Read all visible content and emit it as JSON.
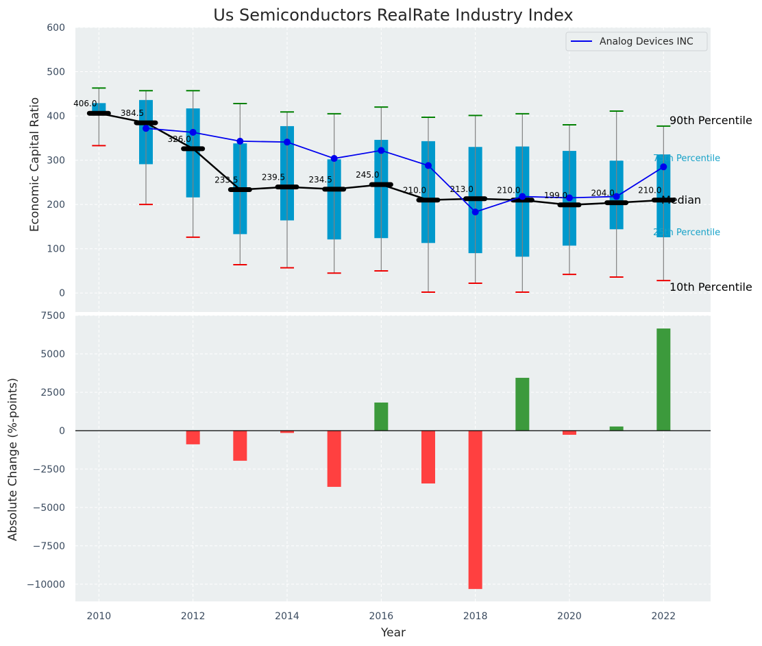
{
  "chart_data": [
    {
      "type": "box",
      "title": "Us Semiconductors RealRate Industry Index",
      "xlabel": "",
      "ylabel": "Economic Capital Ratio",
      "ylim": [
        -43,
        600
      ],
      "yticks": [
        0,
        100,
        200,
        300,
        400,
        500,
        600
      ],
      "grid": true,
      "legend": {
        "position": "top-right",
        "entries": [
          {
            "label": "Analog Devices INC",
            "color": "#0000ee"
          }
        ]
      },
      "x": [
        2010,
        2011,
        2012,
        2013,
        2014,
        2015,
        2016,
        2017,
        2018,
        2019,
        2020,
        2021,
        2022
      ],
      "p90": [
        463,
        457,
        457,
        428,
        409,
        405,
        420,
        397,
        401,
        405,
        380,
        411,
        377
      ],
      "q3": [
        429,
        436,
        417,
        338,
        377,
        302,
        346,
        343,
        330,
        331,
        321,
        299,
        313
      ],
      "median": [
        406.0,
        384.5,
        326.0,
        233.5,
        239.5,
        234.5,
        245.0,
        210.0,
        213.0,
        210.0,
        199.0,
        204.0,
        210.0
      ],
      "median_labels": [
        "406.0",
        "384.5",
        "326.0",
        "233.5",
        "239.5",
        "234.5",
        "245.0",
        "210.0",
        "213.0",
        "210.0",
        "199.0",
        "204.0",
        "210.0"
      ],
      "q1": [
        401,
        291,
        216,
        133,
        164,
        121,
        124,
        113,
        90,
        82,
        107,
        144,
        126
      ],
      "p10": [
        333,
        200,
        126,
        64,
        57,
        45,
        50,
        2,
        22,
        2,
        42,
        36,
        28
      ],
      "series": [
        {
          "name": "Analog Devices INC",
          "x": [
            2011,
            2012,
            2013,
            2014,
            2015,
            2016,
            2017,
            2018,
            2019,
            2020,
            2021,
            2022
          ],
          "values": [
            372,
            363,
            343,
            341,
            304,
            322,
            288,
            183,
            218,
            215,
            218,
            285
          ]
        }
      ],
      "annotations": {
        "p90": "90th Percentile",
        "q3": "75th Percentile",
        "median": "Median",
        "q1": "25th Percentile",
        "p10": "10th Percentile"
      },
      "colors": {
        "box": "#0099cc",
        "median": "#000000",
        "p90_cap": "#008000",
        "p10_cap": "#ee0000",
        "whisker": "#808080",
        "company": "#0000ee",
        "bg": "#ebeff0"
      }
    },
    {
      "type": "bar",
      "title": "",
      "xlabel": "Year",
      "ylabel": "Absolute Change (%-points)",
      "ylim": [
        -11120,
        7500
      ],
      "yticks": [
        -10000,
        -7500,
        -5000,
        -2500,
        0,
        2500,
        5000,
        7500
      ],
      "xticks": [
        2010,
        2012,
        2014,
        2016,
        2018,
        2020,
        2022
      ],
      "xlim": [
        2009.5,
        2023
      ],
      "grid": true,
      "x": [
        2012,
        2013,
        2014,
        2015,
        2016,
        2017,
        2018,
        2019,
        2020,
        2021,
        2022
      ],
      "values": [
        -890,
        -1960,
        -150,
        -3660,
        1830,
        -3440,
        -10310,
        3440,
        -270,
        270,
        6650
      ],
      "colors": {
        "positive": "#3c9a3c",
        "negative": "#ff4040"
      }
    }
  ]
}
